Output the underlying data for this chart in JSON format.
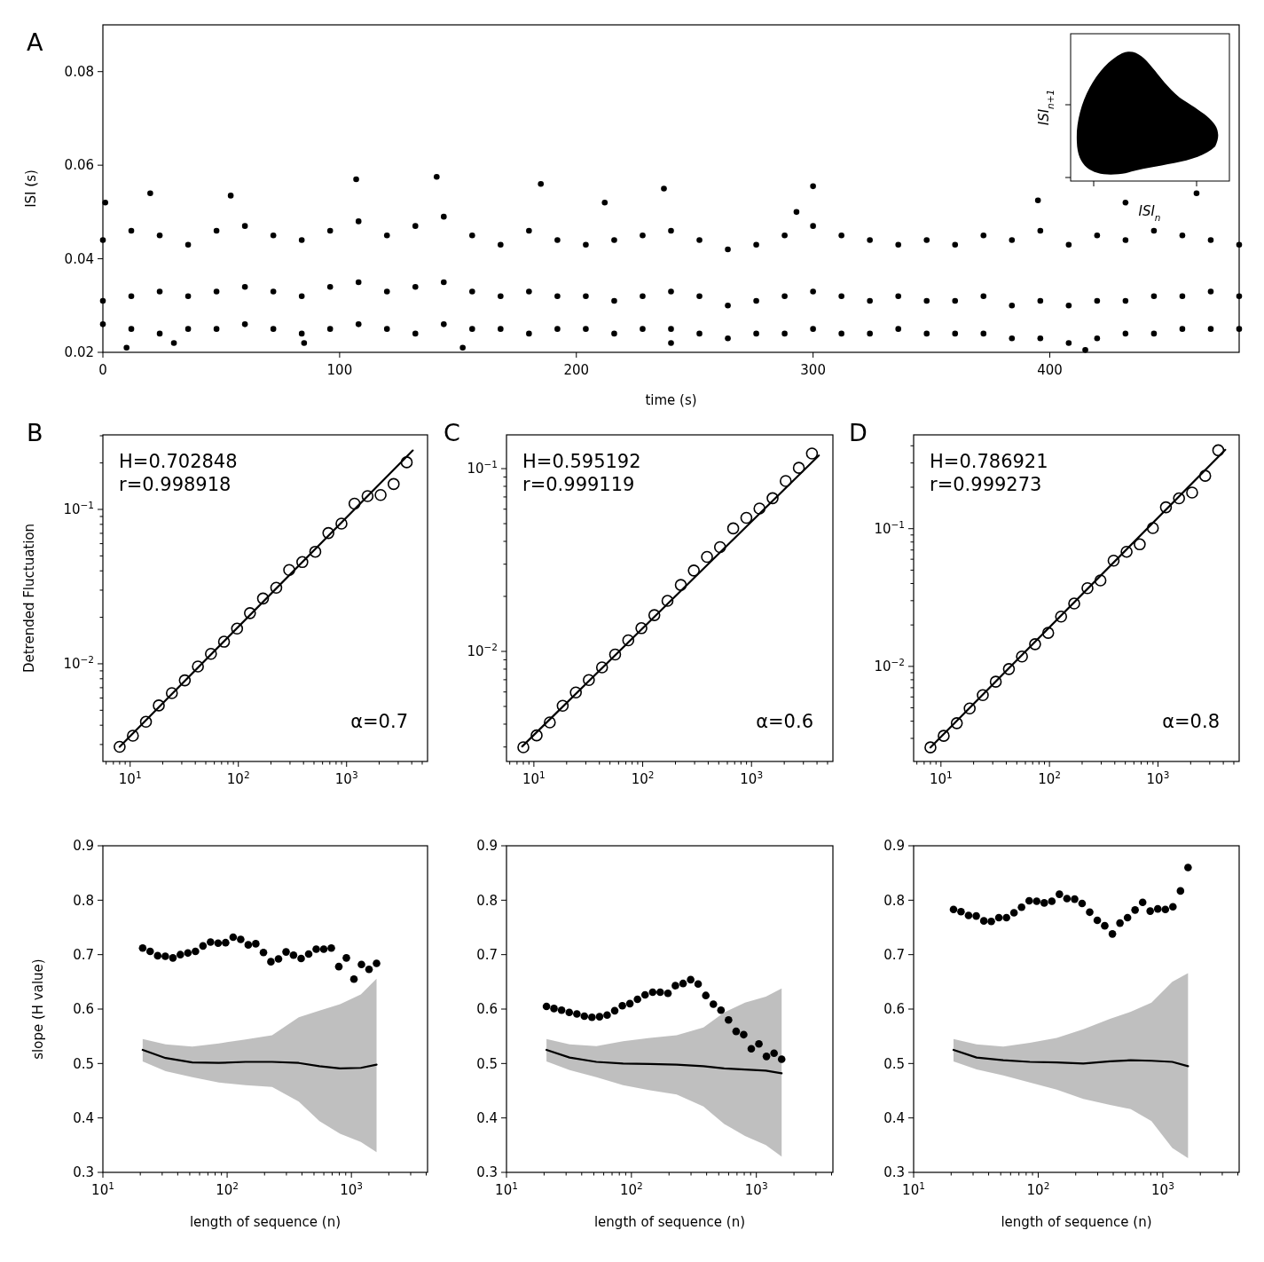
{
  "chart_data": [
    {
      "type": "scatter",
      "title": "A",
      "xlabel": "time (s)",
      "ylabel": "ISI (s)",
      "xlim": [
        0,
        480
      ],
      "ylim": [
        0.02,
        0.09
      ],
      "xticks": [
        0,
        100,
        200,
        300,
        400
      ],
      "yticks": [
        0.02,
        0.04,
        0.06,
        0.08
      ],
      "annotations": [
        "ISI$_{n}$",
        "ISI$_{n+1}$"
      ],
      "series": [
        {
          "type": "scatter",
          "color": "#000000",
          "marker": "circle",
          "x": [
            0,
            12,
            24,
            36,
            48,
            60,
            72,
            84,
            96,
            108,
            120,
            132,
            144,
            156,
            168,
            180,
            192,
            204,
            216,
            228,
            240,
            252,
            264,
            276,
            288,
            300,
            312,
            324,
            336,
            348,
            360,
            372,
            384,
            396,
            408,
            420,
            432,
            444,
            456,
            468,
            480,
            0,
            12,
            24,
            36,
            48,
            60,
            72,
            84,
            96,
            108,
            120,
            132,
            144,
            156,
            168,
            180,
            192,
            204,
            216,
            228,
            240,
            252,
            264,
            276,
            288,
            300,
            312,
            324,
            336,
            348,
            360,
            372,
            384,
            396,
            408,
            420,
            432,
            444,
            456,
            468,
            480,
            0,
            12,
            24,
            36,
            48,
            60,
            72,
            84,
            96,
            108,
            120,
            132,
            144,
            156,
            168,
            180,
            192,
            204,
            216,
            228,
            240,
            252,
            264,
            276,
            288,
            300,
            312,
            324,
            336,
            348,
            360,
            372,
            384,
            396,
            408,
            420,
            432,
            444,
            456,
            468,
            480,
            1,
            20,
            54,
            107,
            141,
            185,
            212,
            237,
            293,
            300,
            395,
            432,
            462,
            10,
            85,
            152,
            240,
            415,
            30
          ],
          "values": [
            0.031,
            0.032,
            0.033,
            0.032,
            0.033,
            0.034,
            0.033,
            0.032,
            0.034,
            0.035,
            0.033,
            0.034,
            0.035,
            0.033,
            0.032,
            0.033,
            0.032,
            0.032,
            0.031,
            0.032,
            0.033,
            0.032,
            0.03,
            0.031,
            0.032,
            0.033,
            0.032,
            0.031,
            0.032,
            0.031,
            0.031,
            0.032,
            0.03,
            0.031,
            0.03,
            0.031,
            0.031,
            0.032,
            0.032,
            0.033,
            0.032,
            0.044,
            0.046,
            0.045,
            0.043,
            0.046,
            0.047,
            0.045,
            0.044,
            0.046,
            0.048,
            0.045,
            0.047,
            0.049,
            0.045,
            0.043,
            0.046,
            0.044,
            0.043,
            0.044,
            0.045,
            0.046,
            0.044,
            0.042,
            0.043,
            0.045,
            0.047,
            0.045,
            0.044,
            0.043,
            0.044,
            0.043,
            0.045,
            0.044,
            0.046,
            0.043,
            0.045,
            0.044,
            0.046,
            0.045,
            0.044,
            0.043,
            0.026,
            0.025,
            0.024,
            0.025,
            0.025,
            0.026,
            0.025,
            0.024,
            0.025,
            0.026,
            0.025,
            0.024,
            0.026,
            0.025,
            0.025,
            0.024,
            0.025,
            0.025,
            0.024,
            0.025,
            0.025,
            0.024,
            0.023,
            0.024,
            0.024,
            0.025,
            0.024,
            0.024,
            0.025,
            0.024,
            0.024,
            0.024,
            0.023,
            0.023,
            0.022,
            0.023,
            0.024,
            0.024,
            0.025,
            0.025,
            0.025,
            0.052,
            0.054,
            0.0535,
            0.057,
            0.0575,
            0.056,
            0.052,
            0.055,
            0.05,
            0.0555,
            0.0525,
            0.052,
            0.054,
            0.021,
            0.022,
            0.021,
            0.022,
            0.0205,
            0.022
          ]
        }
      ]
    },
    {
      "type": "scatter",
      "title": "B",
      "ylabel": "Detrended Fluctuation",
      "log": "xy",
      "xlim": [
        5.6,
        5600
      ],
      "ylim": [
        0.00233,
        0.304
      ],
      "xticks": [
        {
          "value": 6,
          "label": null
        },
        {
          "value": 7,
          "label": null
        },
        {
          "value": 8,
          "label": null
        },
        {
          "value": 9,
          "label": null
        },
        {
          "value": 10,
          "label": "10$^{1}$"
        },
        {
          "value": 20,
          "label": null
        },
        {
          "value": 30,
          "label": null
        },
        {
          "value": 40,
          "label": null
        },
        {
          "value": 50,
          "label": null
        },
        {
          "value": 60,
          "label": null
        },
        {
          "value": 70,
          "label": null
        },
        {
          "value": 80,
          "label": null
        },
        {
          "value": 90,
          "label": null
        },
        {
          "value": 100,
          "label": "10$^{2}$"
        },
        {
          "value": 200,
          "label": null
        },
        {
          "value": 300,
          "label": null
        },
        {
          "value": 400,
          "label": null
        },
        {
          "value": 500,
          "label": null
        },
        {
          "value": 600,
          "label": null
        },
        {
          "value": 700,
          "label": null
        },
        {
          "value": 800,
          "label": null
        },
        {
          "value": 900,
          "label": null
        },
        {
          "value": 1000,
          "label": "10$^{3}$"
        },
        {
          "value": 2000,
          "label": null
        },
        {
          "value": 3000,
          "label": null
        },
        {
          "value": 4000,
          "label": null
        },
        {
          "value": 5000,
          "label": null
        }
      ],
      "yticks": [
        {
          "value": 0.003,
          "label": null
        },
        {
          "value": 0.004,
          "label": null
        },
        {
          "value": 0.005,
          "label": null
        },
        {
          "value": 0.006,
          "label": null
        },
        {
          "value": 0.007,
          "label": null
        },
        {
          "value": 0.008,
          "label": null
        },
        {
          "value": 0.009,
          "label": null
        },
        {
          "value": 0.01,
          "label": "10$^{−2}$"
        },
        {
          "value": 0.02,
          "label": null
        },
        {
          "value": 0.03,
          "label": null
        },
        {
          "value": 0.04,
          "label": null
        },
        {
          "value": 0.05,
          "label": null
        },
        {
          "value": 0.06,
          "label": null
        },
        {
          "value": 0.07,
          "label": null
        },
        {
          "value": 0.08,
          "label": null
        },
        {
          "value": 0.09,
          "label": null
        },
        {
          "value": 0.1,
          "label": "10$^{−1}$"
        },
        {
          "value": 0.2,
          "label": null
        },
        {
          "value": 0.3,
          "label": null
        }
      ],
      "annotations": [
        "H=0.702848",
        "r=0.998918",
        "α=0.7"
      ],
      "series": [
        {
          "type": "scatter",
          "color": "#000000",
          "marker": "circle",
          "x": [
            8,
            10.6,
            14,
            18.4,
            24.3,
            32,
            42.3,
            55.8,
            73.7,
            97.3,
            128,
            169,
            224,
            295,
            390,
            514,
            679,
            897,
            1184,
            1563,
            2063,
            2723,
            3595
          ],
          "values": [
            0.0029,
            0.00342,
            0.00421,
            0.00537,
            0.00646,
            0.00781,
            0.00961,
            0.0116,
            0.0139,
            0.0169,
            0.0213,
            0.0265,
            0.0311,
            0.0405,
            0.0456,
            0.0532,
            0.0703,
            0.0809,
            0.109,
            0.122,
            0.124,
            0.146,
            0.202
          ]
        },
        {
          "type": "line",
          "color": "#000000",
          "marker": "none",
          "x": [
            8,
            4090
          ],
          "values": [
            0.0029,
            0.241
          ]
        }
      ]
    },
    {
      "type": "scatter",
      "title": "C",
      "log": "xy",
      "xlim": [
        5.6,
        5600
      ],
      "ylim": [
        0.0025,
        0.153
      ],
      "xticks": [
        {
          "value": 6,
          "label": null
        },
        {
          "value": 7,
          "label": null
        },
        {
          "value": 8,
          "label": null
        },
        {
          "value": 9,
          "label": null
        },
        {
          "value": 10,
          "label": "10$^{1}$"
        },
        {
          "value": 20,
          "label": null
        },
        {
          "value": 30,
          "label": null
        },
        {
          "value": 40,
          "label": null
        },
        {
          "value": 50,
          "label": null
        },
        {
          "value": 60,
          "label": null
        },
        {
          "value": 70,
          "label": null
        },
        {
          "value": 80,
          "label": null
        },
        {
          "value": 90,
          "label": null
        },
        {
          "value": 100,
          "label": "10$^{2}$"
        },
        {
          "value": 200,
          "label": null
        },
        {
          "value": 300,
          "label": null
        },
        {
          "value": 400,
          "label": null
        },
        {
          "value": 500,
          "label": null
        },
        {
          "value": 600,
          "label": null
        },
        {
          "value": 700,
          "label": null
        },
        {
          "value": 800,
          "label": null
        },
        {
          "value": 900,
          "label": null
        },
        {
          "value": 1000,
          "label": "10$^{3}$"
        },
        {
          "value": 2000,
          "label": null
        },
        {
          "value": 3000,
          "label": null
        },
        {
          "value": 4000,
          "label": null
        },
        {
          "value": 5000,
          "label": null
        }
      ],
      "yticks": [
        {
          "value": 0.003,
          "label": null
        },
        {
          "value": 0.004,
          "label": null
        },
        {
          "value": 0.005,
          "label": null
        },
        {
          "value": 0.006,
          "label": null
        },
        {
          "value": 0.007,
          "label": null
        },
        {
          "value": 0.008,
          "label": null
        },
        {
          "value": 0.009,
          "label": null
        },
        {
          "value": 0.01,
          "label": "10$^{−2}$"
        },
        {
          "value": 0.02,
          "label": null
        },
        {
          "value": 0.03,
          "label": null
        },
        {
          "value": 0.04,
          "label": null
        },
        {
          "value": 0.05,
          "label": null
        },
        {
          "value": 0.06,
          "label": null
        },
        {
          "value": 0.07,
          "label": null
        },
        {
          "value": 0.08,
          "label": null
        },
        {
          "value": 0.09,
          "label": null
        },
        {
          "value": 0.1,
          "label": "10$^{−1}$"
        }
      ],
      "annotations": [
        "H=0.595192",
        "r=0.999119",
        "α=0.6"
      ],
      "series": [
        {
          "type": "scatter",
          "color": "#000000",
          "marker": "circle",
          "x": [
            8,
            10.6,
            14,
            18.4,
            24.3,
            32,
            42.3,
            55.8,
            73.7,
            97.3,
            128,
            169,
            224,
            295,
            390,
            514,
            679,
            897,
            1184,
            1563,
            2063,
            2723,
            3595
          ],
          "values": [
            0.00299,
            0.00347,
            0.00409,
            0.00504,
            0.00596,
            0.00697,
            0.00818,
            0.00962,
            0.0115,
            0.0134,
            0.0158,
            0.0189,
            0.0231,
            0.0277,
            0.0329,
            0.0372,
            0.0471,
            0.0538,
            0.0605,
            0.0689,
            0.0855,
            0.101,
            0.121
          ]
        },
        {
          "type": "line",
          "color": "#000000",
          "marker": "none",
          "x": [
            7.8,
            4160
          ],
          "values": [
            0.00302,
            0.118
          ]
        }
      ]
    },
    {
      "type": "scatter",
      "title": "D",
      "log": "xy",
      "xlim": [
        5.6,
        5600
      ],
      "ylim": [
        0.00204,
        0.48
      ],
      "xticks": [
        {
          "value": 6,
          "label": null
        },
        {
          "value": 7,
          "label": null
        },
        {
          "value": 8,
          "label": null
        },
        {
          "value": 9,
          "label": null
        },
        {
          "value": 10,
          "label": "10$^{1}$"
        },
        {
          "value": 20,
          "label": null
        },
        {
          "value": 30,
          "label": null
        },
        {
          "value": 40,
          "label": null
        },
        {
          "value": 50,
          "label": null
        },
        {
          "value": 60,
          "label": null
        },
        {
          "value": 70,
          "label": null
        },
        {
          "value": 80,
          "label": null
        },
        {
          "value": 90,
          "label": null
        },
        {
          "value": 100,
          "label": "10$^{2}$"
        },
        {
          "value": 200,
          "label": null
        },
        {
          "value": 300,
          "label": null
        },
        {
          "value": 400,
          "label": null
        },
        {
          "value": 500,
          "label": null
        },
        {
          "value": 600,
          "label": null
        },
        {
          "value": 700,
          "label": null
        },
        {
          "value": 800,
          "label": null
        },
        {
          "value": 900,
          "label": null
        },
        {
          "value": 1000,
          "label": "10$^{3}$"
        },
        {
          "value": 2000,
          "label": null
        },
        {
          "value": 3000,
          "label": null
        },
        {
          "value": 4000,
          "label": null
        },
        {
          "value": 5000,
          "label": null
        }
      ],
      "yticks": [
        {
          "value": 0.003,
          "label": null
        },
        {
          "value": 0.004,
          "label": null
        },
        {
          "value": 0.005,
          "label": null
        },
        {
          "value": 0.006,
          "label": null
        },
        {
          "value": 0.007,
          "label": null
        },
        {
          "value": 0.008,
          "label": null
        },
        {
          "value": 0.009,
          "label": null
        },
        {
          "value": 0.01,
          "label": "10$^{−2}$"
        },
        {
          "value": 0.02,
          "label": null
        },
        {
          "value": 0.03,
          "label": null
        },
        {
          "value": 0.04,
          "label": null
        },
        {
          "value": 0.05,
          "label": null
        },
        {
          "value": 0.06,
          "label": null
        },
        {
          "value": 0.07,
          "label": null
        },
        {
          "value": 0.08,
          "label": null
        },
        {
          "value": 0.09,
          "label": null
        },
        {
          "value": 0.1,
          "label": "10$^{−1}$"
        },
        {
          "value": 0.2,
          "label": null
        },
        {
          "value": 0.3,
          "label": null
        },
        {
          "value": 0.4,
          "label": null
        }
      ],
      "annotations": [
        "H=0.786921",
        "r=0.999273",
        "α=0.8"
      ],
      "series": [
        {
          "type": "scatter",
          "color": "#000000",
          "marker": "circle",
          "x": [
            8,
            10.6,
            14,
            18.4,
            24.3,
            32,
            42.3,
            55.8,
            73.7,
            97.3,
            128,
            169,
            224,
            295,
            390,
            514,
            679,
            897,
            1184,
            1563,
            2063,
            2723,
            3595
          ],
          "values": [
            0.00258,
            0.00313,
            0.00387,
            0.00495,
            0.00619,
            0.00774,
            0.00957,
            0.0118,
            0.0145,
            0.0175,
            0.023,
            0.0286,
            0.037,
            0.0421,
            0.0586,
            0.068,
            0.077,
            0.101,
            0.143,
            0.166,
            0.183,
            0.242,
            0.371
          ]
        },
        {
          "type": "line",
          "color": "#000000",
          "marker": "none",
          "x": [
            8,
            4170
          ],
          "values": [
            0.00258,
            0.374
          ]
        }
      ]
    },
    {
      "type": "scatter",
      "xlabel": "length of sequence (n)",
      "ylabel": "slope (H value)",
      "log": "x",
      "xlim": [
        10,
        4100
      ],
      "ylim": [
        0.3,
        0.9
      ],
      "xticks": [
        {
          "value": 10,
          "label": "10$^{1}$"
        },
        {
          "value": 20,
          "label": null
        },
        {
          "value": 30,
          "label": null
        },
        {
          "value": 40,
          "label": null
        },
        {
          "value": 50,
          "label": null
        },
        {
          "value": 60,
          "label": null
        },
        {
          "value": 70,
          "label": null
        },
        {
          "value": 80,
          "label": null
        },
        {
          "value": 90,
          "label": null
        },
        {
          "value": 100,
          "label": "10$^{2}$"
        },
        {
          "value": 200,
          "label": null
        },
        {
          "value": 300,
          "label": null
        },
        {
          "value": 400,
          "label": null
        },
        {
          "value": 500,
          "label": null
        },
        {
          "value": 600,
          "label": null
        },
        {
          "value": 700,
          "label": null
        },
        {
          "value": 800,
          "label": null
        },
        {
          "value": 900,
          "label": null
        },
        {
          "value": 1000,
          "label": "10$^{3}$"
        },
        {
          "value": 2000,
          "label": null
        },
        {
          "value": 3000,
          "label": null
        },
        {
          "value": 4000,
          "label": null
        }
      ],
      "yticks": [
        0.3,
        0.4,
        0.5,
        0.6,
        0.7,
        0.8,
        0.9
      ],
      "series": [
        {
          "type": "line",
          "color": "#000000",
          "marker": "none",
          "x": [
            20.9,
            32,
            52.4,
            85.7,
            140.6,
            230,
            377,
            553,
            811,
            1191,
            1594
          ],
          "values": [
            0.525,
            0.51,
            0.502,
            0.501,
            0.503,
            0.503,
            0.501,
            0.495,
            0.491,
            0.492,
            0.498
          ],
          "lower": [
            0.504,
            0.486,
            0.475,
            0.465,
            0.46,
            0.457,
            0.43,
            0.394,
            0.371,
            0.356,
            0.337
          ],
          "upper": [
            0.545,
            0.535,
            0.531,
            0.537,
            0.544,
            0.552,
            0.585,
            0.597,
            0.609,
            0.627,
            0.656
          ]
        },
        {
          "type": "scatter",
          "color": "#000000",
          "marker": "circle",
          "x": [
            20.9,
            24,
            27.6,
            31.8,
            36.6,
            42,
            48.3,
            55.6,
            63.9,
            73.5,
            84.6,
            97.2,
            111.8,
            128.6,
            147.9,
            170,
            196,
            225,
            259,
            298,
            342,
            394,
            453,
            521,
            599,
            689,
            792,
            911,
            1048,
            1205,
            1386,
            1594
          ],
          "values": [
            0.712,
            0.706,
            0.698,
            0.697,
            0.694,
            0.7,
            0.703,
            0.706,
            0.716,
            0.723,
            0.721,
            0.722,
            0.732,
            0.728,
            0.718,
            0.72,
            0.704,
            0.687,
            0.692,
            0.705,
            0.699,
            0.693,
            0.701,
            0.71,
            0.71,
            0.712,
            0.678,
            0.694,
            0.655,
            0.682,
            0.673,
            0.684
          ]
        }
      ]
    },
    {
      "type": "scatter",
      "xlabel": "length of sequence (n)",
      "log": "x",
      "xlim": [
        10,
        4100
      ],
      "ylim": [
        0.3,
        0.9
      ],
      "xticks": [
        {
          "value": 10,
          "label": "10$^{1}$"
        },
        {
          "value": 20,
          "label": null
        },
        {
          "value": 30,
          "label": null
        },
        {
          "value": 40,
          "label": null
        },
        {
          "value": 50,
          "label": null
        },
        {
          "value": 60,
          "label": null
        },
        {
          "value": 70,
          "label": null
        },
        {
          "value": 80,
          "label": null
        },
        {
          "value": 90,
          "label": null
        },
        {
          "value": 100,
          "label": "10$^{2}$"
        },
        {
          "value": 200,
          "label": null
        },
        {
          "value": 300,
          "label": null
        },
        {
          "value": 400,
          "label": null
        },
        {
          "value": 500,
          "label": null
        },
        {
          "value": 600,
          "label": null
        },
        {
          "value": 700,
          "label": null
        },
        {
          "value": 800,
          "label": null
        },
        {
          "value": 900,
          "label": null
        },
        {
          "value": 1000,
          "label": "10$^{3}$"
        },
        {
          "value": 2000,
          "label": null
        },
        {
          "value": 3000,
          "label": null
        },
        {
          "value": 4000,
          "label": null
        }
      ],
      "yticks": [
        0.3,
        0.4,
        0.5,
        0.6,
        0.7,
        0.8,
        0.9
      ],
      "series": [
        {
          "type": "line",
          "color": "#000000",
          "marker": "none",
          "x": [
            20.9,
            32,
            52.4,
            85.7,
            140.6,
            230,
            377,
            553,
            811,
            1191,
            1594
          ],
          "values": [
            0.525,
            0.511,
            0.503,
            0.5,
            0.499,
            0.498,
            0.495,
            0.491,
            0.489,
            0.487,
            0.482
          ],
          "lower": [
            0.504,
            0.488,
            0.475,
            0.46,
            0.451,
            0.443,
            0.421,
            0.389,
            0.367,
            0.35,
            0.329
          ],
          "upper": [
            0.545,
            0.535,
            0.532,
            0.541,
            0.547,
            0.552,
            0.566,
            0.594,
            0.612,
            0.623,
            0.638
          ]
        },
        {
          "type": "scatter",
          "color": "#000000",
          "marker": "circle",
          "x": [
            20.9,
            24,
            27.6,
            31.8,
            36.6,
            42,
            48.3,
            55.6,
            63.9,
            73.5,
            84.6,
            97.2,
            111.8,
            128.6,
            147.9,
            170,
            196,
            225,
            259,
            298,
            342,
            394,
            453,
            521,
            599,
            689,
            792,
            911,
            1048,
            1205,
            1386,
            1594
          ],
          "values": [
            0.605,
            0.601,
            0.598,
            0.594,
            0.591,
            0.587,
            0.585,
            0.586,
            0.589,
            0.597,
            0.606,
            0.61,
            0.618,
            0.626,
            0.631,
            0.631,
            0.629,
            0.643,
            0.647,
            0.654,
            0.646,
            0.625,
            0.609,
            0.598,
            0.58,
            0.559,
            0.553,
            0.527,
            0.536,
            0.513,
            0.519,
            0.508
          ]
        }
      ]
    },
    {
      "type": "scatter",
      "xlabel": "length of sequence (n)",
      "log": "x",
      "xlim": [
        10,
        4100
      ],
      "ylim": [
        0.3,
        0.9
      ],
      "xticks": [
        {
          "value": 10,
          "label": "10$^{1}$"
        },
        {
          "value": 20,
          "label": null
        },
        {
          "value": 30,
          "label": null
        },
        {
          "value": 40,
          "label": null
        },
        {
          "value": 50,
          "label": null
        },
        {
          "value": 60,
          "label": null
        },
        {
          "value": 70,
          "label": null
        },
        {
          "value": 80,
          "label": null
        },
        {
          "value": 90,
          "label": null
        },
        {
          "value": 100,
          "label": "10$^{2}$"
        },
        {
          "value": 200,
          "label": null
        },
        {
          "value": 300,
          "label": null
        },
        {
          "value": 400,
          "label": null
        },
        {
          "value": 500,
          "label": null
        },
        {
          "value": 600,
          "label": null
        },
        {
          "value": 700,
          "label": null
        },
        {
          "value": 800,
          "label": null
        },
        {
          "value": 900,
          "label": null
        },
        {
          "value": 1000,
          "label": "10$^{3}$"
        },
        {
          "value": 2000,
          "label": null
        },
        {
          "value": 3000,
          "label": null
        },
        {
          "value": 4000,
          "label": null
        }
      ],
      "yticks": [
        0.3,
        0.4,
        0.5,
        0.6,
        0.7,
        0.8,
        0.9
      ],
      "series": [
        {
          "type": "line",
          "color": "#000000",
          "marker": "none",
          "x": [
            20.9,
            32,
            52.4,
            85.7,
            140.6,
            230,
            377,
            553,
            811,
            1191,
            1594
          ],
          "values": [
            0.525,
            0.511,
            0.506,
            0.503,
            0.502,
            0.5,
            0.504,
            0.506,
            0.505,
            0.503,
            0.495
          ],
          "lower": [
            0.504,
            0.489,
            0.478,
            0.465,
            0.452,
            0.435,
            0.424,
            0.416,
            0.394,
            0.345,
            0.326
          ],
          "upper": [
            0.545,
            0.535,
            0.531,
            0.538,
            0.547,
            0.563,
            0.582,
            0.595,
            0.612,
            0.65,
            0.666
          ]
        },
        {
          "type": "scatter",
          "color": "#000000",
          "marker": "circle",
          "x": [
            20.9,
            24,
            27.6,
            31.8,
            36.6,
            42,
            48.3,
            55.6,
            63.9,
            73.5,
            84.6,
            97.2,
            111.8,
            128.6,
            147.9,
            170,
            196,
            225,
            259,
            298,
            342,
            394,
            453,
            521,
            599,
            689,
            792,
            911,
            1048,
            1205,
            1386,
            1594
          ],
          "values": [
            0.783,
            0.779,
            0.772,
            0.771,
            0.762,
            0.761,
            0.768,
            0.768,
            0.777,
            0.787,
            0.799,
            0.798,
            0.795,
            0.798,
            0.811,
            0.803,
            0.802,
            0.794,
            0.778,
            0.763,
            0.753,
            0.738,
            0.758,
            0.768,
            0.782,
            0.796,
            0.78,
            0.784,
            0.783,
            0.788,
            0.817,
            0.86
          ]
        }
      ]
    }
  ]
}
